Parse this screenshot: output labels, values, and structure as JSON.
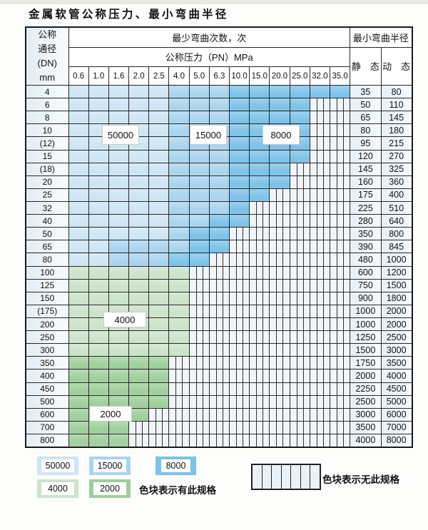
{
  "title": "金属软管公称压力、最小弯曲半径",
  "colors": {
    "50000": "#cde5f4",
    "15000": "#a9d4ef",
    "8000": "#7cc2e8",
    "4000": "#cbe3c8",
    "2000": "#9ecf9b",
    "none_bg": "#f1f5f9",
    "grid_line": "#282828",
    "label_col_bg": "#e9f1f8"
  },
  "chart_data": {
    "type": "table",
    "title": "金属软管公称压力、最小弯曲半径",
    "col_header_top": "最少弯曲次数，次",
    "col_header_mid": "公称压力（PN）MPa",
    "row_header_lines": "公称\n通径\n(DN)\nmm",
    "right_header": "最小弯曲半径",
    "static_label": "静　态",
    "dynamic_label": "动　态",
    "pressures_MPa": [
      "0.6",
      "1.0",
      "1.6",
      "2.0",
      "2.5",
      "4.0",
      "5.0",
      "6.3",
      "10.0",
      "15.0",
      "20.0",
      "25.0",
      "32.0",
      "35.0"
    ],
    "cycle_zone_labels": [
      "50000",
      "15000",
      "8000",
      "4000",
      "2000"
    ],
    "rows": [
      {
        "dn": "4",
        "cycles_runs": [
          [
            "50000",
            5
          ],
          [
            "15000",
            3
          ],
          [
            "8000",
            6
          ]
        ],
        "static": "35",
        "dynamic": "80"
      },
      {
        "dn": "6",
        "cycles_runs": [
          [
            "50000",
            5
          ],
          [
            "15000",
            3
          ],
          [
            "8000",
            4
          ],
          [
            "none",
            2
          ]
        ],
        "static": "50",
        "dynamic": "110"
      },
      {
        "dn": "8",
        "cycles_runs": [
          [
            "50000",
            5
          ],
          [
            "15000",
            3
          ],
          [
            "8000",
            4
          ],
          [
            "none",
            2
          ]
        ],
        "static": "65",
        "dynamic": "145"
      },
      {
        "dn": "10",
        "cycles_runs": [
          [
            "50000",
            5
          ],
          [
            "15000",
            3
          ],
          [
            "8000",
            4
          ],
          [
            "none",
            2
          ]
        ],
        "static": "80",
        "dynamic": "180"
      },
      {
        "dn": "(12)",
        "cycles_runs": [
          [
            "50000",
            5
          ],
          [
            "15000",
            3
          ],
          [
            "8000",
            4
          ],
          [
            "none",
            2
          ]
        ],
        "static": "95",
        "dynamic": "215"
      },
      {
        "dn": "15",
        "cycles_runs": [
          [
            "50000",
            5
          ],
          [
            "15000",
            3
          ],
          [
            "8000",
            4
          ],
          [
            "none",
            2
          ]
        ],
        "static": "120",
        "dynamic": "270"
      },
      {
        "dn": "(18)",
        "cycles_runs": [
          [
            "50000",
            5
          ],
          [
            "15000",
            3
          ],
          [
            "8000",
            3
          ],
          [
            "none",
            3
          ]
        ],
        "static": "145",
        "dynamic": "325"
      },
      {
        "dn": "20",
        "cycles_runs": [
          [
            "50000",
            5
          ],
          [
            "15000",
            3
          ],
          [
            "8000",
            3
          ],
          [
            "none",
            3
          ]
        ],
        "static": "160",
        "dynamic": "360"
      },
      {
        "dn": "25",
        "cycles_runs": [
          [
            "50000",
            5
          ],
          [
            "15000",
            3
          ],
          [
            "8000",
            2
          ],
          [
            "none",
            4
          ]
        ],
        "static": "175",
        "dynamic": "400"
      },
      {
        "dn": "32",
        "cycles_runs": [
          [
            "50000",
            5
          ],
          [
            "15000",
            3
          ],
          [
            "8000",
            1
          ],
          [
            "none",
            5
          ]
        ],
        "static": "225",
        "dynamic": "510"
      },
      {
        "dn": "40",
        "cycles_runs": [
          [
            "50000",
            5
          ],
          [
            "15000",
            2
          ],
          [
            "8000",
            2
          ],
          [
            "none",
            5
          ]
        ],
        "static": "280",
        "dynamic": "640"
      },
      {
        "dn": "50",
        "cycles_runs": [
          [
            "50000",
            5
          ],
          [
            "15000",
            1
          ],
          [
            "8000",
            2
          ],
          [
            "none",
            6
          ]
        ],
        "static": "350",
        "dynamic": "800"
      },
      {
        "dn": "65",
        "cycles_runs": [
          [
            "50000",
            2
          ],
          [
            "15000",
            4
          ],
          [
            "8000",
            2
          ],
          [
            "none",
            6
          ]
        ],
        "static": "390",
        "dynamic": "845"
      },
      {
        "dn": "80",
        "cycles_runs": [
          [
            "50000",
            2
          ],
          [
            "15000",
            3
          ],
          [
            "8000",
            2
          ],
          [
            "none",
            7
          ]
        ],
        "static": "480",
        "dynamic": "1000"
      },
      {
        "dn": "100",
        "cycles_runs": [
          [
            "4000",
            6
          ],
          [
            "none",
            8
          ]
        ],
        "static": "600",
        "dynamic": "1200"
      },
      {
        "dn": "125",
        "cycles_runs": [
          [
            "4000",
            6
          ],
          [
            "none",
            8
          ]
        ],
        "static": "750",
        "dynamic": "1500"
      },
      {
        "dn": "150",
        "cycles_runs": [
          [
            "4000",
            6
          ],
          [
            "none",
            8
          ]
        ],
        "static": "900",
        "dynamic": "1800"
      },
      {
        "dn": "(175)",
        "cycles_runs": [
          [
            "4000",
            6
          ],
          [
            "none",
            8
          ]
        ],
        "static": "1000",
        "dynamic": "2000"
      },
      {
        "dn": "200",
        "cycles_runs": [
          [
            "4000",
            6
          ],
          [
            "none",
            8
          ]
        ],
        "static": "1000",
        "dynamic": "2000"
      },
      {
        "dn": "250",
        "cycles_runs": [
          [
            "4000",
            6
          ],
          [
            "none",
            8
          ]
        ],
        "static": "1250",
        "dynamic": "2500"
      },
      {
        "dn": "300",
        "cycles_runs": [
          [
            "4000",
            6
          ],
          [
            "none",
            8
          ]
        ],
        "static": "1500",
        "dynamic": "3000"
      },
      {
        "dn": "350",
        "cycles_runs": [
          [
            "2000",
            5
          ],
          [
            "none",
            9
          ]
        ],
        "static": "1750",
        "dynamic": "3500"
      },
      {
        "dn": "400",
        "cycles_runs": [
          [
            "2000",
            5
          ],
          [
            "none",
            9
          ]
        ],
        "static": "2000",
        "dynamic": "4000"
      },
      {
        "dn": "450",
        "cycles_runs": [
          [
            "2000",
            5
          ],
          [
            "none",
            9
          ]
        ],
        "static": "2250",
        "dynamic": "4500"
      },
      {
        "dn": "500",
        "cycles_runs": [
          [
            "2000",
            5
          ],
          [
            "none",
            9
          ]
        ],
        "static": "2500",
        "dynamic": "5000"
      },
      {
        "dn": "600",
        "cycles_runs": [
          [
            "2000",
            4
          ],
          [
            "none",
            10
          ]
        ],
        "static": "3000",
        "dynamic": "6000"
      },
      {
        "dn": "700",
        "cycles_runs": [
          [
            "2000",
            3
          ],
          [
            "none",
            11
          ]
        ],
        "static": "3500",
        "dynamic": "7000"
      },
      {
        "dn": "800",
        "cycles_runs": [
          [
            "2000",
            3
          ],
          [
            "none",
            11
          ]
        ],
        "static": "4000",
        "dynamic": "8000"
      }
    ],
    "overlay_labels": [
      {
        "text": "50000",
        "at_dn": "10"
      },
      {
        "text": "15000",
        "at_dn": "10"
      },
      {
        "text": "8000",
        "at_dn": "10"
      },
      {
        "text": "4000",
        "at_dn": "200"
      },
      {
        "text": "2000",
        "at_dn": "600"
      }
    ],
    "legend": {
      "items": [
        {
          "label": "50000",
          "color_key": "50000"
        },
        {
          "label": "15000",
          "color_key": "15000"
        },
        {
          "label": "8000",
          "color_key": "8000"
        },
        {
          "label": "4000",
          "color_key": "4000"
        },
        {
          "label": "2000",
          "color_key": "2000"
        }
      ],
      "has_spec_text": "色块表示有此规格",
      "no_spec_text": "色块表示无此规格"
    }
  }
}
